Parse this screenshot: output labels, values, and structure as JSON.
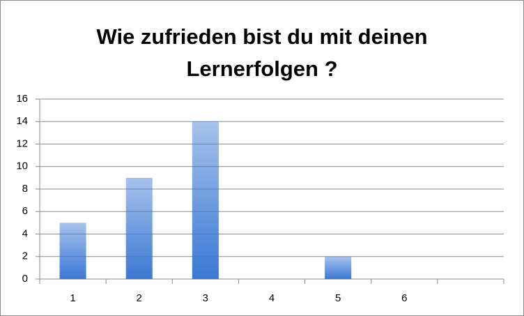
{
  "chart_data": {
    "type": "bar",
    "title": "Wie zufrieden bist du mit deinen Lernerfolgen ?",
    "categories": [
      "1",
      "2",
      "3",
      "4",
      "5",
      "6",
      null
    ],
    "values": [
      5,
      9,
      14,
      0,
      2,
      0,
      null
    ],
    "color": "#3a78d4",
    "ylim": [
      0,
      16
    ],
    "yticks": [
      0,
      2,
      4,
      6,
      8,
      10,
      12,
      14,
      16
    ],
    "grid": true
  }
}
